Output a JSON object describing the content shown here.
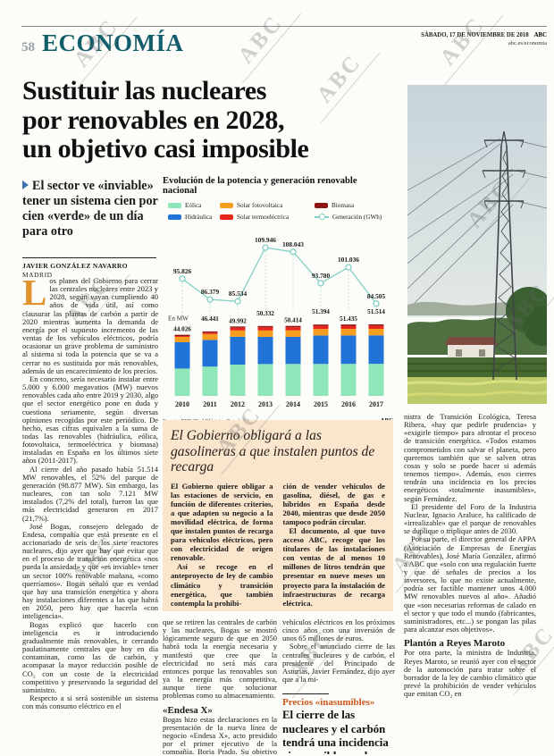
{
  "page": {
    "number": "58",
    "section": "ECONOMÍA",
    "date": "SÁBADO, 17 DE NOVIEMBRE DE 2018",
    "brand": "ABC",
    "url": "abc.es/economia",
    "watermark": "ABC"
  },
  "article": {
    "headline_lines": [
      "Sustituir las nucleares",
      "por renovables en 2028,",
      "un objetivo casi imposible"
    ],
    "subheadline": "El sector ve «inviable» tener un sistema cien por cien «verde» de un día para otro",
    "byline": "JAVIER GONZÁLEZ NAVARRO",
    "location": "MADRID",
    "dropcap": "L",
    "col1": [
      "os planes del Gobierno para cerrar las centrales nucleares entre 2023 y 2028, según vayan cumpliendo 40 años de vida útil, así como clausurar las plantas de carbón a partir de 2020 mientras aumenta la demanda de energía por el supuesto incremento de las ventas de los vehículos eléctricos, podría ocasionar un grave problema de suministro al sistema si toda la potencia que se va a cerrar no es sustituida por más renovables, además de un encarecimiento de los precios.",
      "En concreto, sería necesario instalar entre 5.000 y 6.000 megavatios (MW) nuevos renovables cada año entre 2019 y 2030, algo que el sector energético pone en duda y cuestiona seriamente, según diversas opiniones recogidas por este periódico. De hecho, esas cifras equivalen a la suma de todas las renovables (hidráulica, eólica, fotovoltaica, termoeléctrica y biomasa) instaladas en España en los últimos siete años (2011-2017).",
      "Al cierre del año pasado había 51.514 MW renovables, el 52% del parque de generación (98.877 MW). Sin embargo, las nucleares, con tan solo 7.121 MW instalados (7,2% del total), fueron las que más electricidad generaron en 2017 (21,7%).",
      "José Bogas, consejero delegado de Endesa, compañía que está presente en el accionariado de seis de los siete reactores nucleares, dijo ayer que hay que evitar que en el proceso de transición energética «nos pueda la ansiedad» y que «es inviable» tener un sector 100% renovable mañana, «como querríamos». Bogas señaló que es verdad que hay una transición energética y ahora hay instalaciones diferentes a las que habrá en 2050, pero hay que hacerla «con inteligencia».",
      "Bogas explicó que hacerlo con inteligencia es ir introduciendo gradualmente más renovables, ir cerrando paulatinamente centrales que hoy en día contaminan, como las de carbón, y acompasar la mayor reducción posible de CO₂ con un coste de la electricidad competitivo y preservando la seguridad del suministro.",
      "Respecto a si será sostenible un sistema con más consumo eléctrico en el"
    ],
    "col2": [
      "que se retiren las centrales de carbón y las nucleares, Bogas se mostró lógicamente seguro de que en 2050 habrá toda la energía necesaria y manifestó que cree que la electricidad no será más cara entonces porque las renovables son ya la energía más competitiva, aunque tiene que solucionar problemas como su almacenamiento."
    ],
    "col2_subhead": "«Endesa X»",
    "col2b": [
      "Bogas hizo estas declaraciones en la presentación de la nueva línea de negocio «Endesa X», acto presidido por el primer ejecutivo de la compañía, Borja Prado. Su objetivo es instalar más de cien mil puntos de recarga para"
    ],
    "col3": [
      "vehículos eléctricos en los próximos cinco años con una inversión de unos 65 millones de euros.",
      "Sobre el anunciado cierre de las centrales nucleares y de carbón, el presidente del Principado de Asturias, Javier Fernández, dijo ayer que a la mi-"
    ],
    "col4": [
      "nistra de Transición Ecológica, Teresa Ribera, «hay que pedirle prudencia» y «exigirle tiempo» para afrontar el proceso de transición energética. «Todos estamos comprometidos con salvar el planeta, pero queremos también que se salven otras cosas y solo se puede hacer si además tenemos tiempo». Además, esos cierres tendrán una incidencia en los precios energéticos «totalmente inasumibles», según Fernández.",
      "El presidente del Foro de la Industria Nuclear, Ignacio Araluce, ha calificado de «irrealizable» que el parque de renovables se duplique o triplique antes de 2030.",
      "Por su parte, el director general de APPA (Asociación de Empresas de Energías Renovables), José María González, afirmó a ABC que «solo con una regulación fuerte y que dé señales de precios a los inversores, lo que no existe actualmente, podría ser factible mantener unos 4.000 MW renovables nuevos al año». Añadió que «son necesarias reformas de calado en el sector y que todo el mundo (fabricantes, suministradores, etc...) se pongan las pilas para alcanzar esos objetivos»."
    ],
    "col4_subhead": "Plantón a Reyes Maroto",
    "col4b": [
      "Por otra parte, la ministra de Industria, Reyes Maroto, se reunió ayer con el sector de la automoción para tratar sobre el borrador de la ley de cambio climático que prevé la prohibición de vender vehículos que emitan CO₂ en"
    ]
  },
  "chart_data": {
    "type": "bar+line",
    "title": "Evolución de la potencia y generación renovable nacional",
    "unit_label": "En MW",
    "categories": [
      "2010",
      "2011",
      "2012",
      "2013",
      "2014",
      "2015",
      "2016",
      "2017"
    ],
    "bar_totals_mw": [
      44026,
      46441,
      49992,
      50332,
      50414,
      51394,
      51435,
      51514
    ],
    "bar_total_labels": [
      "44.026",
      "46.441",
      "49.992",
      "50.332",
      "50.414",
      "51.394",
      "51.435",
      "51.514"
    ],
    "series": [
      {
        "name": "Eólica",
        "color": "#8fe6b8",
        "values": [
          19700,
          21100,
          22500,
          22950,
          23000,
          23000,
          23050,
          23100
        ]
      },
      {
        "name": "Hidráulica",
        "color": "#2273d8",
        "values": [
          18976,
          19191,
          20092,
          19532,
          19544,
          20514,
          20495,
          20514
        ]
      },
      {
        "name": "Solar fotovoltaica",
        "color": "#f59d1f",
        "values": [
          3850,
          4250,
          4550,
          4650,
          4670,
          4680,
          4690,
          4700
        ]
      },
      {
        "name": "Solar termoeléctrica",
        "color": "#e6261a",
        "values": [
          600,
          1000,
          1950,
          2300,
          2300,
          2300,
          2300,
          2300
        ]
      },
      {
        "name": "Biomasa",
        "color": "#8d1512",
        "values": [
          900,
          900,
          900,
          900,
          900,
          900,
          900,
          900
        ]
      }
    ],
    "line_series": {
      "name": "Generación (GWh)",
      "color": "#83cfc6",
      "values": [
        95826,
        86379,
        85534,
        109946,
        108043,
        93780,
        101036,
        84505
      ],
      "labels": [
        "95.826",
        "86.379",
        "85.534",
        "109.946",
        "108.043",
        "93.780",
        "101.036",
        "84.505"
      ]
    },
    "legend": [
      {
        "label": "Eólica",
        "color": "#8fe6b8",
        "type": "box"
      },
      {
        "label": "Hidráulica",
        "color": "#2273d8",
        "type": "box"
      },
      {
        "label": "Solar fotovoltaica",
        "color": "#f59d1f",
        "type": "box"
      },
      {
        "label": "Solar termoeléctrica",
        "color": "#e6261a",
        "type": "box"
      },
      {
        "label": "Biomasa",
        "color": "#8d1512",
        "type": "box"
      },
      {
        "label": "Generación (GWh)",
        "color": "#83cfc6",
        "type": "line"
      }
    ],
    "source": "Fuente: REE (Red Eléctrica Española)",
    "credit": "ABC",
    "ylim_bars_mw": [
      0,
      52000
    ],
    "ylim_line_gwh": [
      80000,
      112000
    ],
    "note": "segment breakdown estimated from stacked bar proportions"
  },
  "recharge_box": {
    "title": "El Gobierno obligará a las gasolineras a que instalen puntos de recarga",
    "col1": [
      "El Gobierno quiere obligar a las estaciones de servicio, en función de diferentes criterios, a que adapten su negocio a la movilidad eléctrica, de forma que instalen puntos de recarga para vehículos eléctricos, pero con electricidad de origen renovable.",
      "Así se recoge en el anteproyecto de ley de cambio climático y transición energética, que también contempla la prohibi-"
    ],
    "col2": [
      "ción de vender vehículos de gasolina, diésel, de gas e híbridos en España desde 2040, mientras que desde 2050 tampoco podrán circular.",
      "El documento, al que tuvo acceso ABC, recoge que los titulares de las instalaciones con ventas de al menos 10 millones de litros tendrán que presentar en nueve meses un proyecto para la instalación de infraestructuras de recarga eléctrica."
    ]
  },
  "pull_quote": {
    "kicker": "Precios «inasumibles»",
    "text": "El cierre de las nucleares y el carbón tendrá una incidencia «inasumible» en los precios energéticos, dice Javier Fernández"
  }
}
